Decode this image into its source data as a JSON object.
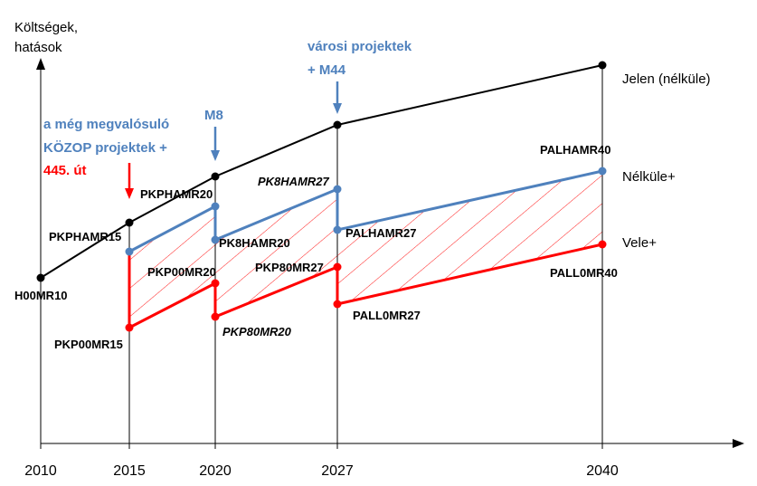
{
  "y_axis_title_line1": "Költségek,",
  "y_axis_title_line2": "hatások",
  "x_ticks": [
    "2010",
    "2015",
    "2020",
    "2027",
    "2040"
  ],
  "annotations": {
    "kozop_line1": "a még megvalósuló",
    "kozop_line2": "KÖZOP projektek +",
    "road445": "445. út",
    "m8": "M8",
    "varosi_line1": "városi projektek",
    "varosi_line2": "+ M44"
  },
  "series_labels": {
    "jelen": "Jelen (nélküle)",
    "nelkule": "Nélküle+",
    "vele": "Vele+"
  },
  "points": {
    "h00mr10": "H00MR10",
    "pkphamr15": "PKPHAMR15",
    "pkp00mr15": "PKP00MR15",
    "pkphamr20": "PKPHAMR20",
    "pkp00mr20": "PKP00MR20",
    "pk8hamr20": "PK8HAMR20",
    "pkp80mr20": "PKP80MR20",
    "pk8hamr27": "PK8HAMR27",
    "pkp80mr27": "PKP80MR27",
    "palhamr27": "PALHAMR27",
    "pall0mr27": "PALL0MR27",
    "palhamr40": "PALHAMR40",
    "pall0mr40": "PALL0MR40"
  },
  "colors": {
    "black": "#000000",
    "blue": "#4F81BD",
    "red": "#FF0000",
    "hatch": "#FF0000"
  }
}
